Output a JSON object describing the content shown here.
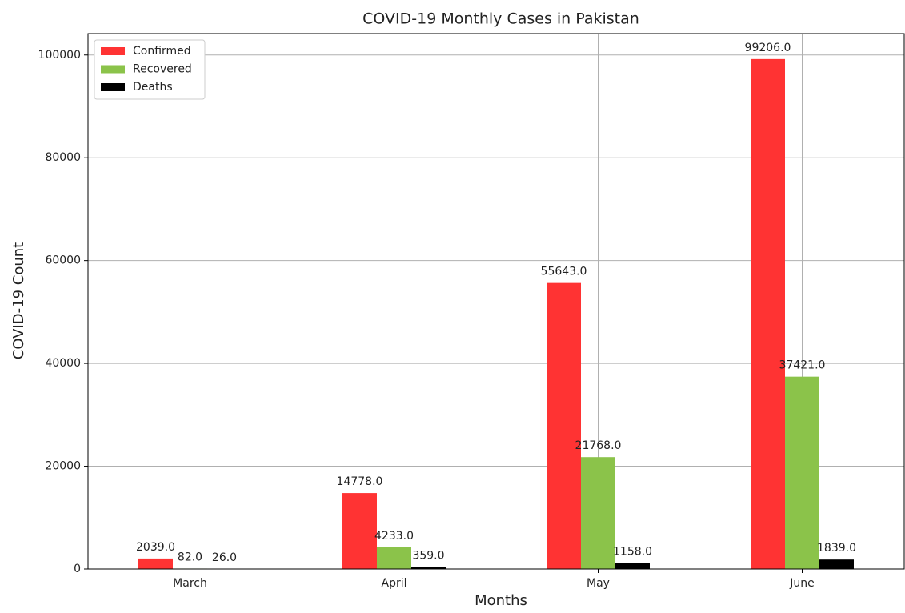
{
  "chart_data": {
    "type": "bar",
    "title": "COVID-19 Monthly Cases in Pakistan",
    "x_label": "Months",
    "y_label": "COVID-19 Count",
    "categories": [
      "March",
      "April",
      "May",
      "June"
    ],
    "series": [
      {
        "name": "Confirmed",
        "color": "#ff3333",
        "values": [
          2039,
          14778,
          55643,
          99206
        ],
        "value_labels": [
          "2039.0",
          "14778.0",
          "55643.0",
          "99206.0"
        ]
      },
      {
        "name": "Recovered",
        "color": "#8bc34a",
        "values": [
          82,
          4233,
          21768,
          37421
        ],
        "value_labels": [
          "82.0",
          "4233.0",
          "21768.0",
          "37421.0"
        ]
      },
      {
        "name": "Deaths",
        "color": "#000000",
        "values": [
          26,
          359,
          1158,
          1839
        ],
        "value_labels": [
          "26.0",
          "359.0",
          "1158.0",
          "1839.0"
        ]
      }
    ],
    "ylim": [
      0,
      104166
    ],
    "yticks": [
      0,
      20000,
      40000,
      60000,
      80000,
      100000
    ],
    "grid": true,
    "legend": "upper left"
  }
}
